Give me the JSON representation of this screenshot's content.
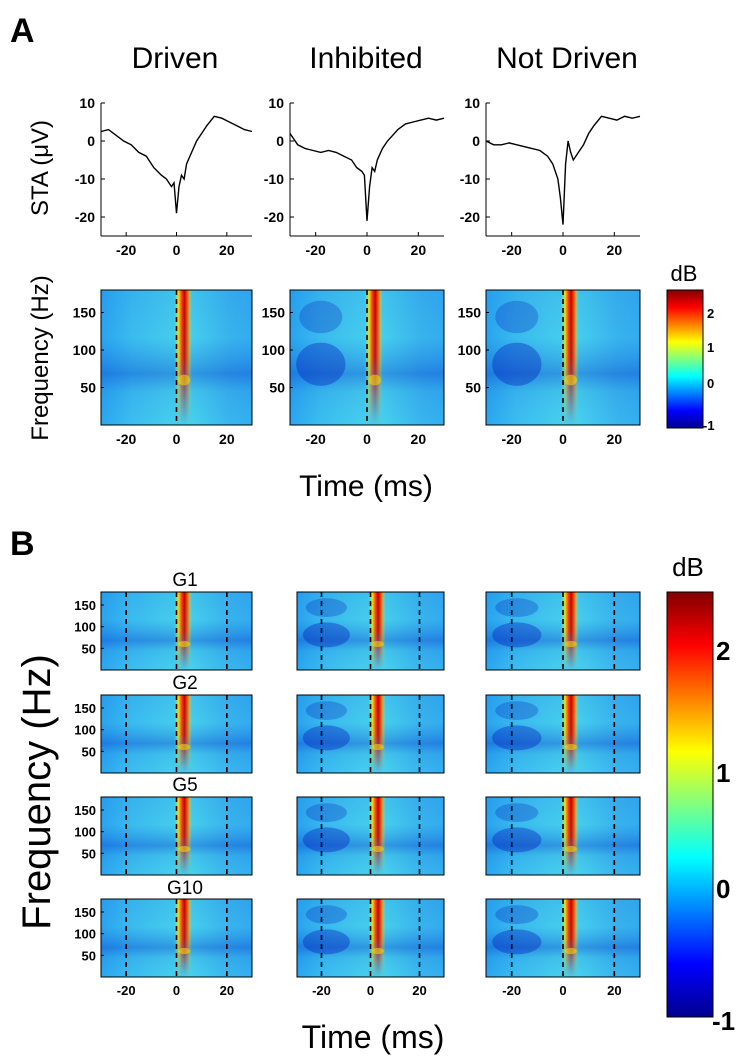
{
  "panel_a": {
    "label": "A",
    "columns": [
      "Driven",
      "Inhibited",
      "Not Driven"
    ],
    "sta_ylabel": "STA (μV)",
    "spec_ylabel": "Frequency (Hz)",
    "xlabel": "Time (ms)",
    "colorbar": {
      "title": "dB",
      "ticks": [
        "2",
        "1",
        "0",
        "-1"
      ]
    }
  },
  "panel_b": {
    "label": "B",
    "rows": [
      "G1",
      "G2",
      "G5",
      "G10"
    ],
    "ylabel": "Frequency (Hz)",
    "xlabel": "Time (ms)",
    "colorbar": {
      "title": "dB",
      "ticks": [
        "2",
        "1",
        "0",
        "-1"
      ]
    }
  },
  "colors": {
    "jet": [
      "#00008f",
      "#0000ff",
      "#0080ff",
      "#00ffff",
      "#80ff80",
      "#ffff00",
      "#ff8000",
      "#ff0000",
      "#800000"
    ],
    "dashed": "#000000"
  },
  "chart_data": [
    {
      "type": "line",
      "title": "Driven",
      "ylabel": "STA (μV)",
      "xlim": [
        -30,
        30
      ],
      "ylim": [
        -25,
        10
      ],
      "xticks": [
        -20,
        0,
        20
      ],
      "yticks": [
        10,
        0,
        -10,
        -20
      ],
      "x": [
        -30,
        -27,
        -24,
        -21,
        -18,
        -15,
        -12,
        -9,
        -6,
        -4,
        -2,
        -1,
        0,
        1,
        2,
        3,
        4,
        6,
        8,
        10,
        12,
        15,
        18,
        21,
        24,
        27,
        30
      ],
      "y": [
        2.5,
        3,
        1.5,
        0,
        -1,
        -3,
        -4,
        -7,
        -9,
        -10,
        -12,
        -11,
        -19,
        -12,
        -9,
        -10,
        -6,
        -3,
        0,
        2,
        4,
        6.5,
        6,
        5,
        4,
        3,
        2.5
      ]
    },
    {
      "type": "line",
      "title": "Inhibited",
      "ylabel": "STA (μV)",
      "xlim": [
        -30,
        30
      ],
      "ylim": [
        -25,
        10
      ],
      "xticks": [
        -20,
        0,
        20
      ],
      "yticks": [
        10,
        0,
        -10,
        -20
      ],
      "x": [
        -30,
        -27,
        -24,
        -21,
        -18,
        -15,
        -12,
        -9,
        -6,
        -4,
        -2,
        -1,
        0,
        1,
        2,
        3,
        4,
        6,
        8,
        10,
        12,
        15,
        18,
        21,
        24,
        27,
        30
      ],
      "y": [
        2,
        -1,
        -2,
        -2.5,
        -3,
        -2.5,
        -3,
        -4,
        -5,
        -7,
        -8,
        -9,
        -21,
        -12,
        -7,
        -8,
        -5,
        -2,
        0,
        1.5,
        3,
        4.5,
        5,
        5.5,
        6,
        5.5,
        6
      ]
    },
    {
      "type": "line",
      "title": "Not Driven",
      "ylabel": "STA (μV)",
      "xlim": [
        -30,
        30
      ],
      "ylim": [
        -25,
        10
      ],
      "xticks": [
        -20,
        0,
        20
      ],
      "yticks": [
        10,
        0,
        -10,
        -20
      ],
      "x": [
        -30,
        -27,
        -24,
        -21,
        -18,
        -15,
        -12,
        -9,
        -6,
        -4,
        -2,
        -1,
        0,
        1,
        2,
        3,
        4,
        6,
        8,
        10,
        12,
        15,
        18,
        21,
        24,
        27,
        30
      ],
      "y": [
        0,
        -1,
        -1,
        -0.5,
        -1,
        -1.5,
        -2,
        -2.5,
        -4,
        -6,
        -10,
        -15,
        -22,
        -6,
        0,
        -3,
        -5,
        -3,
        -1,
        2,
        4,
        6.5,
        6,
        5.5,
        6.5,
        6,
        6.5
      ]
    },
    {
      "type": "heatmap",
      "panel": "A",
      "columns": [
        "Driven",
        "Inhibited",
        "Not Driven"
      ],
      "xlabel": "Time (ms)",
      "ylabel": "Frequency (Hz)",
      "xlim": [
        -30,
        30
      ],
      "ylim": [
        0,
        180
      ],
      "xticks": [
        -20,
        0,
        20
      ],
      "yticks": [
        150,
        100,
        50
      ],
      "color_label": "dB",
      "color_range": [
        -1,
        2.2
      ],
      "marker_lines_ms": [
        0
      ],
      "peak_time_ms": 2,
      "peak_value_db": 2.2
    },
    {
      "type": "heatmap",
      "panel": "B",
      "rows": [
        "G1",
        "G2",
        "G5",
        "G10"
      ],
      "columns": [
        "Driven",
        "Inhibited",
        "Not Driven"
      ],
      "xlabel": "Time (ms)",
      "ylabel": "Frequency (Hz)",
      "xlim": [
        -30,
        30
      ],
      "ylim": [
        0,
        180
      ],
      "xticks": [
        -20,
        0,
        20
      ],
      "yticks": [
        150,
        100,
        50
      ],
      "color_label": "dB",
      "color_range": [
        -1,
        2.5
      ],
      "marker_lines_ms": [
        -20,
        0,
        20
      ]
    }
  ]
}
